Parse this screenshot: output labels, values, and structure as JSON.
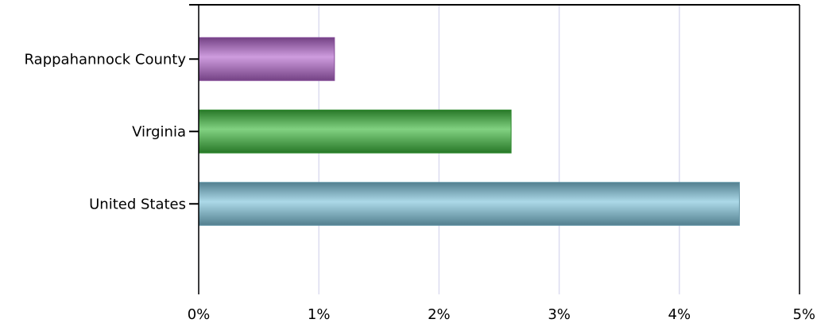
{
  "chart_data": {
    "type": "bar",
    "orientation": "horizontal",
    "categories": [
      "Rappahannock County",
      "Virginia",
      "United States"
    ],
    "values": [
      1.13,
      2.6,
      4.5
    ],
    "colors": [
      "#b366cc",
      "#3db83d",
      "#7fc4dc"
    ],
    "xlim": [
      0,
      5
    ],
    "xticks": [
      "0%",
      "1%",
      "2%",
      "3%",
      "4%",
      "5%"
    ],
    "grid": true,
    "title": "",
    "xlabel": "",
    "ylabel": ""
  }
}
